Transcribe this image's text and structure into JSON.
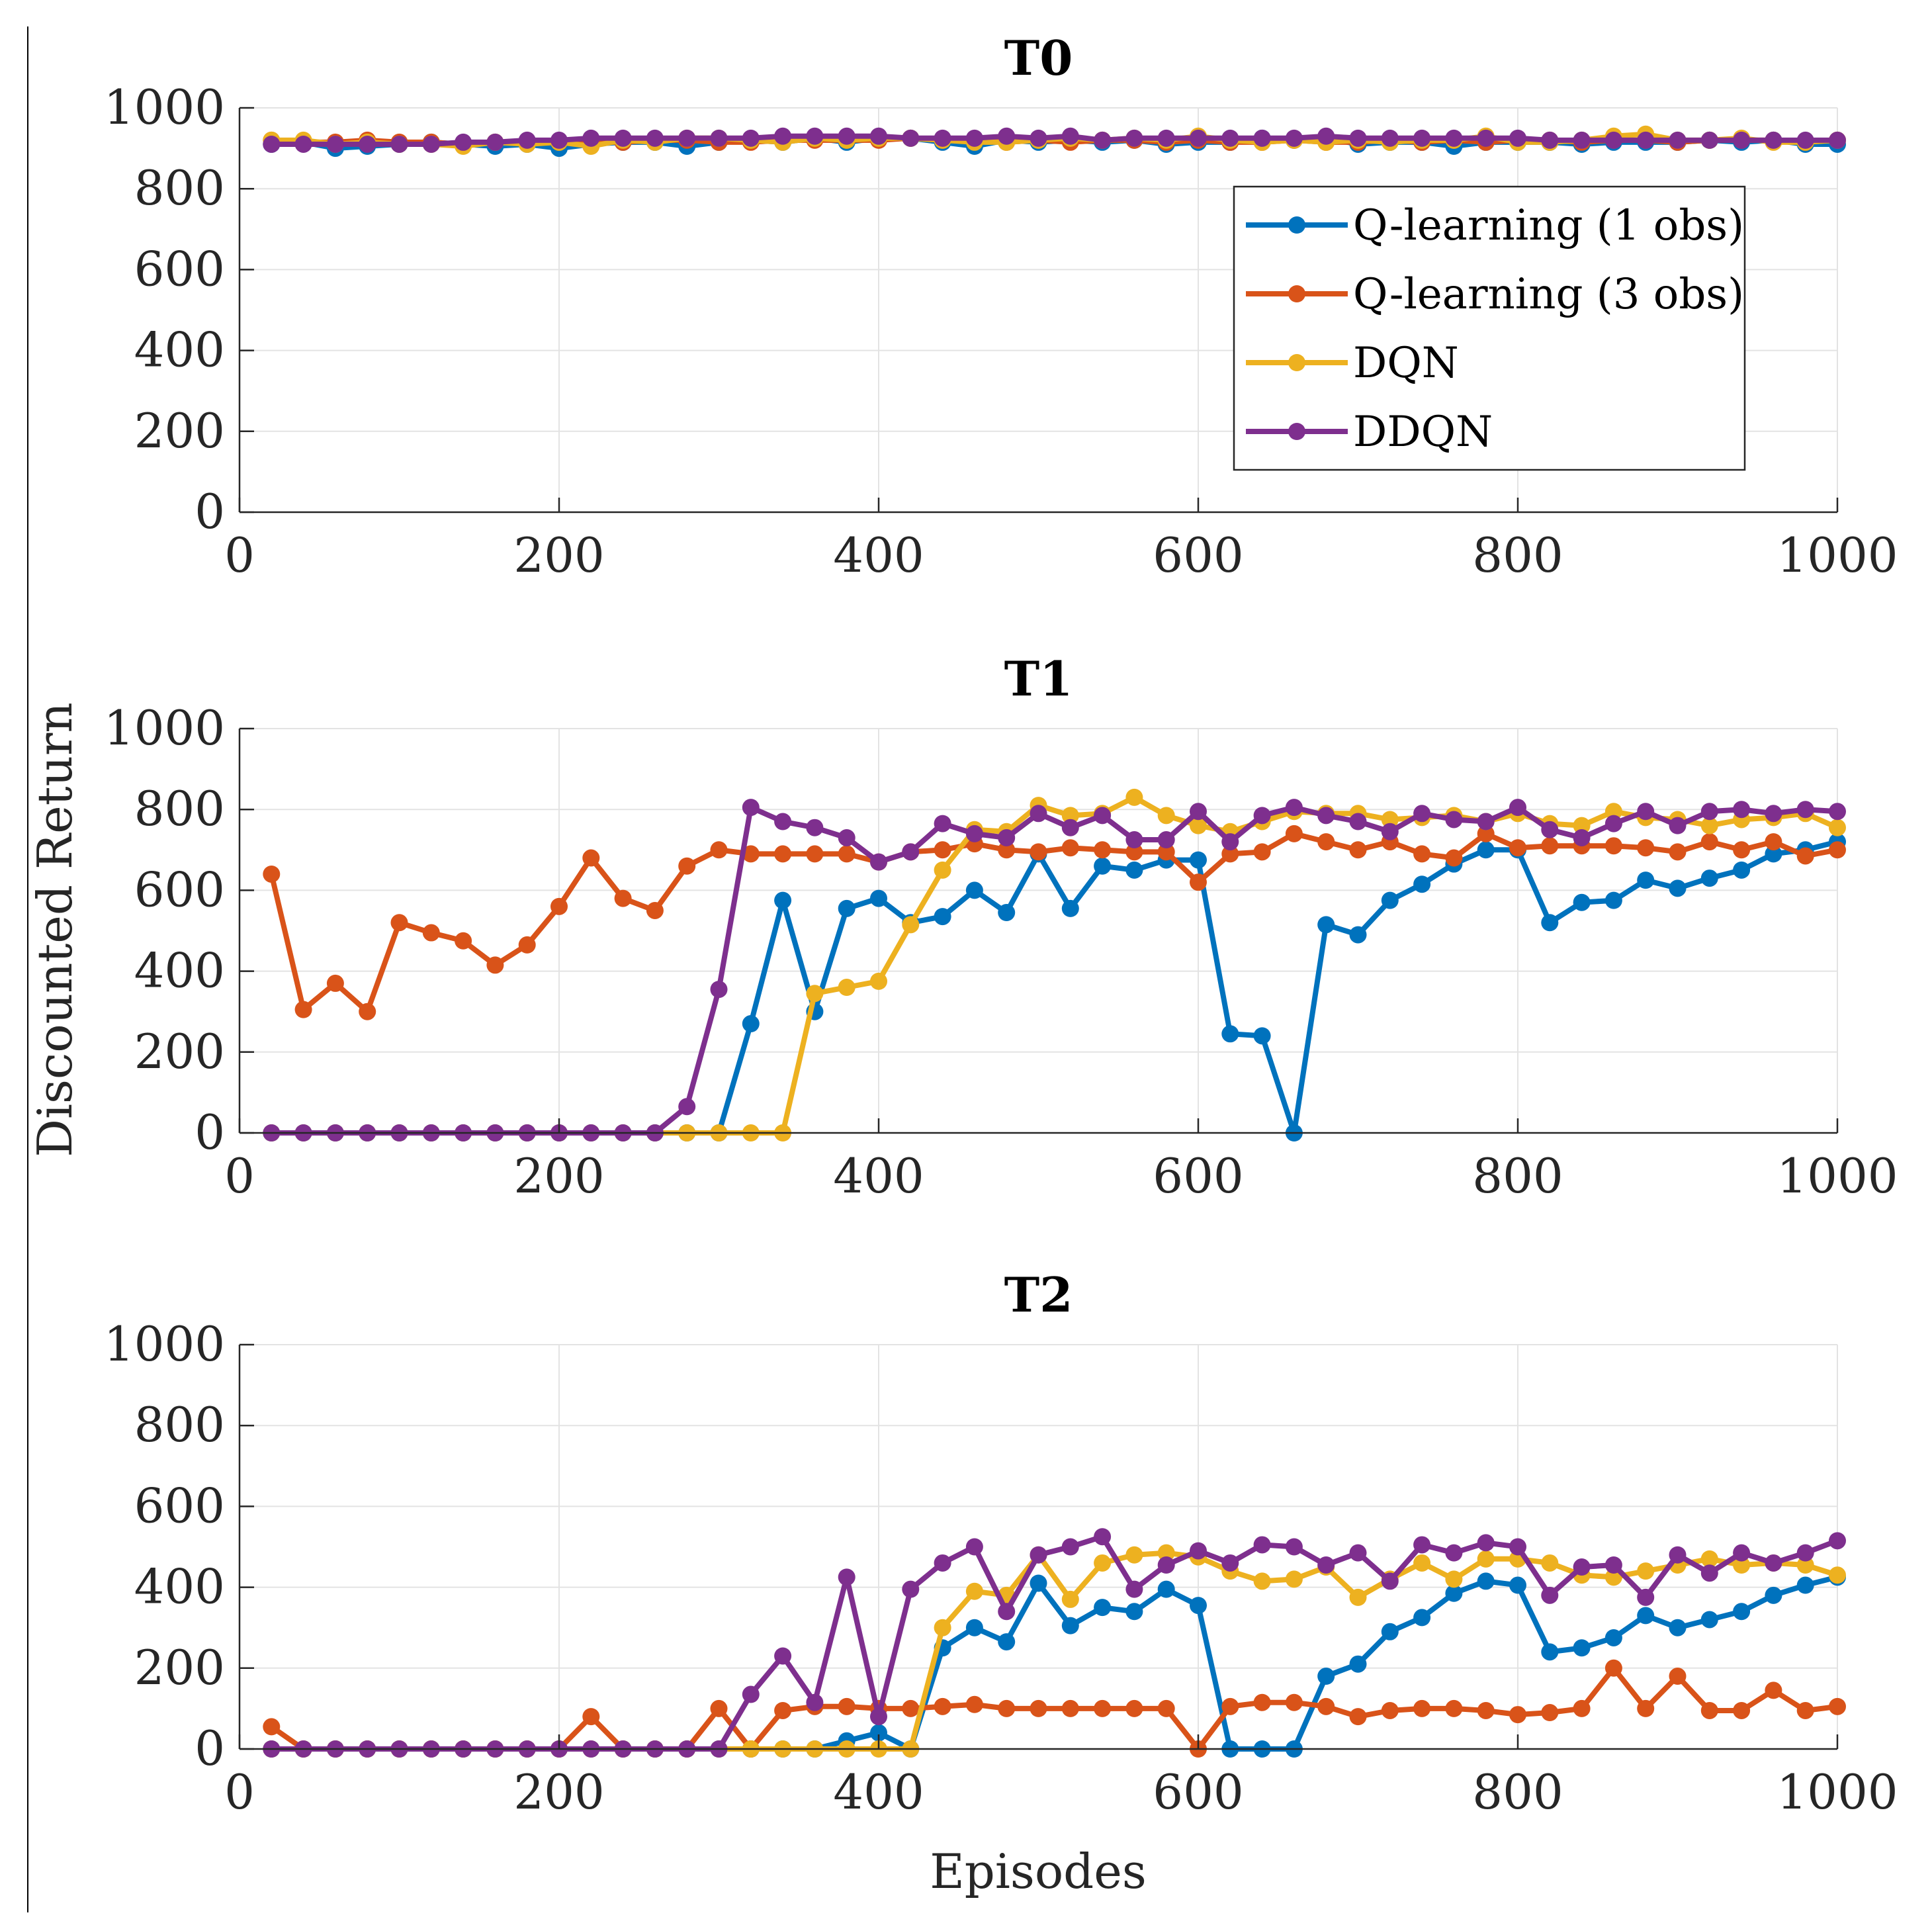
{
  "figure": {
    "ylabel": "Discounted Return",
    "xlabel": "Episodes"
  },
  "chart_data": [
    {
      "type": "line",
      "title": "T0",
      "xlabel": "",
      "ylabel": "",
      "xlim": [
        0,
        1000
      ],
      "ylim": [
        0,
        1000
      ],
      "xticks": [
        0,
        200,
        400,
        600,
        800,
        1000
      ],
      "yticks": [
        0,
        200,
        400,
        600,
        800,
        1000
      ],
      "grid": true,
      "legend": "top-right-inside",
      "x": [
        20,
        40,
        60,
        80,
        100,
        120,
        140,
        160,
        180,
        200,
        220,
        240,
        260,
        280,
        300,
        320,
        340,
        360,
        380,
        400,
        420,
        440,
        460,
        480,
        500,
        520,
        540,
        560,
        580,
        600,
        620,
        640,
        660,
        680,
        700,
        720,
        740,
        760,
        780,
        800,
        820,
        840,
        860,
        880,
        900,
        920,
        940,
        960,
        980,
        1000
      ],
      "series": [
        {
          "name": "Q-learning (1 obs)",
          "color": "#0072BD",
          "values": [
            910,
            915,
            900,
            905,
            910,
            915,
            910,
            905,
            910,
            900,
            910,
            915,
            915,
            905,
            915,
            920,
            915,
            925,
            915,
            925,
            925,
            915,
            905,
            920,
            915,
            920,
            915,
            920,
            910,
            915,
            915,
            925,
            920,
            925,
            910,
            915,
            915,
            905,
            915,
            915,
            915,
            910,
            915,
            915,
            915,
            920,
            915,
            920,
            910,
            910
          ]
        },
        {
          "name": "Q-learning (3 obs)",
          "color": "#D95319",
          "values": [
            920,
            915,
            915,
            920,
            915,
            915,
            910,
            915,
            915,
            915,
            915,
            915,
            920,
            920,
            915,
            915,
            920,
            920,
            920,
            920,
            925,
            920,
            920,
            915,
            920,
            915,
            920,
            920,
            915,
            920,
            915,
            915,
            920,
            915,
            915,
            920,
            915,
            920,
            915,
            920,
            920,
            915,
            920,
            920,
            915,
            920,
            920,
            920,
            915,
            920
          ]
        },
        {
          "name": "DQN",
          "color": "#EDB120",
          "values": [
            920,
            920,
            910,
            915,
            910,
            910,
            905,
            915,
            910,
            915,
            905,
            920,
            915,
            925,
            925,
            920,
            915,
            925,
            920,
            925,
            925,
            920,
            915,
            915,
            920,
            925,
            920,
            925,
            920,
            930,
            920,
            915,
            920,
            915,
            920,
            915,
            920,
            920,
            930,
            915,
            915,
            920,
            930,
            935,
            920,
            920,
            925,
            915,
            915,
            920
          ]
        },
        {
          "name": "DDQN",
          "color": "#7E2F8E",
          "values": [
            910,
            910,
            910,
            910,
            910,
            910,
            915,
            915,
            920,
            920,
            925,
            925,
            925,
            925,
            925,
            925,
            930,
            930,
            930,
            930,
            925,
            925,
            925,
            930,
            925,
            930,
            920,
            925,
            925,
            925,
            925,
            925,
            925,
            930,
            925,
            925,
            925,
            925,
            925,
            925,
            920,
            920,
            920,
            920,
            920,
            920,
            920,
            920,
            920,
            920
          ]
        }
      ]
    },
    {
      "type": "line",
      "title": "T1",
      "xlabel": "",
      "ylabel": "",
      "xlim": [
        0,
        1000
      ],
      "ylim": [
        0,
        1000
      ],
      "xticks": [
        0,
        200,
        400,
        600,
        800,
        1000
      ],
      "yticks": [
        0,
        200,
        400,
        600,
        800,
        1000
      ],
      "grid": true,
      "x": [
        20,
        40,
        60,
        80,
        100,
        120,
        140,
        160,
        180,
        200,
        220,
        240,
        260,
        280,
        300,
        320,
        340,
        360,
        380,
        400,
        420,
        440,
        460,
        480,
        500,
        520,
        540,
        560,
        580,
        600,
        620,
        640,
        660,
        680,
        700,
        720,
        740,
        760,
        780,
        800,
        820,
        840,
        860,
        880,
        900,
        920,
        940,
        960,
        980,
        1000
      ],
      "series": [
        {
          "name": "Q-learning (1 obs)",
          "color": "#0072BD",
          "values": [
            0,
            0,
            0,
            0,
            0,
            0,
            0,
            0,
            0,
            0,
            0,
            0,
            0,
            0,
            0,
            270,
            575,
            300,
            555,
            580,
            520,
            535,
            600,
            545,
            690,
            555,
            660,
            650,
            675,
            675,
            245,
            240,
            0,
            515,
            490,
            575,
            615,
            665,
            700,
            700,
            520,
            570,
            575,
            625,
            605,
            630,
            650,
            690,
            700,
            720
          ]
        },
        {
          "name": "Q-learning (3 obs)",
          "color": "#D95319",
          "values": [
            640,
            305,
            370,
            300,
            520,
            495,
            475,
            415,
            465,
            560,
            680,
            580,
            550,
            660,
            700,
            690,
            690,
            690,
            690,
            670,
            695,
            700,
            715,
            700,
            695,
            705,
            700,
            695,
            695,
            620,
            690,
            695,
            740,
            720,
            700,
            720,
            690,
            680,
            740,
            705,
            710,
            710,
            710,
            705,
            695,
            720,
            700,
            720,
            685,
            700
          ]
        },
        {
          "name": "DQN",
          "color": "#EDB120",
          "values": [
            0,
            0,
            0,
            0,
            0,
            0,
            0,
            0,
            0,
            0,
            0,
            0,
            0,
            0,
            0,
            0,
            0,
            345,
            360,
            375,
            515,
            650,
            750,
            745,
            810,
            785,
            790,
            830,
            785,
            760,
            745,
            770,
            795,
            790,
            790,
            775,
            780,
            785,
            770,
            790,
            765,
            760,
            795,
            780,
            775,
            760,
            775,
            780,
            790,
            755
          ]
        },
        {
          "name": "DDQN",
          "color": "#7E2F8E",
          "values": [
            0,
            0,
            0,
            0,
            0,
            0,
            0,
            0,
            0,
            0,
            0,
            0,
            0,
            65,
            355,
            805,
            770,
            755,
            730,
            670,
            695,
            765,
            740,
            730,
            790,
            755,
            785,
            725,
            725,
            795,
            720,
            785,
            805,
            785,
            770,
            745,
            790,
            775,
            770,
            805,
            750,
            730,
            765,
            795,
            760,
            795,
            800,
            790,
            800,
            795
          ]
        }
      ]
    },
    {
      "type": "line",
      "title": "T2",
      "xlabel": "Episodes",
      "ylabel": "",
      "xlim": [
        0,
        1000
      ],
      "ylim": [
        0,
        1000
      ],
      "xticks": [
        0,
        200,
        400,
        600,
        800,
        1000
      ],
      "yticks": [
        0,
        200,
        400,
        600,
        800,
        1000
      ],
      "grid": true,
      "x": [
        20,
        40,
        60,
        80,
        100,
        120,
        140,
        160,
        180,
        200,
        220,
        240,
        260,
        280,
        300,
        320,
        340,
        360,
        380,
        400,
        420,
        440,
        460,
        480,
        500,
        520,
        540,
        560,
        580,
        600,
        620,
        640,
        660,
        680,
        700,
        720,
        740,
        760,
        780,
        800,
        820,
        840,
        860,
        880,
        900,
        920,
        940,
        960,
        980,
        1000
      ],
      "series": [
        {
          "name": "Q-learning (1 obs)",
          "color": "#0072BD",
          "values": [
            0,
            0,
            0,
            0,
            0,
            0,
            0,
            0,
            0,
            0,
            0,
            0,
            0,
            0,
            0,
            0,
            0,
            0,
            20,
            40,
            0,
            250,
            300,
            265,
            410,
            305,
            350,
            340,
            395,
            355,
            0,
            0,
            0,
            180,
            210,
            290,
            325,
            385,
            415,
            405,
            240,
            250,
            275,
            330,
            300,
            320,
            340,
            380,
            405,
            425
          ]
        },
        {
          "name": "Q-learning (3 obs)",
          "color": "#D95319",
          "values": [
            55,
            0,
            0,
            0,
            0,
            0,
            0,
            0,
            0,
            0,
            80,
            0,
            0,
            0,
            100,
            0,
            95,
            105,
            105,
            100,
            100,
            105,
            110,
            100,
            100,
            100,
            100,
            100,
            100,
            0,
            105,
            115,
            115,
            105,
            80,
            95,
            100,
            100,
            95,
            85,
            90,
            100,
            200,
            100,
            180,
            95,
            95,
            145,
            95,
            105
          ]
        },
        {
          "name": "DQN",
          "color": "#EDB120",
          "values": [
            0,
            0,
            0,
            0,
            0,
            0,
            0,
            0,
            0,
            0,
            0,
            0,
            0,
            0,
            0,
            0,
            0,
            0,
            0,
            0,
            0,
            300,
            390,
            380,
            480,
            370,
            460,
            480,
            485,
            475,
            440,
            415,
            420,
            450,
            375,
            420,
            460,
            420,
            470,
            470,
            460,
            430,
            425,
            440,
            455,
            470,
            455,
            460,
            455,
            430
          ]
        },
        {
          "name": "DDQN",
          "color": "#7E2F8E",
          "values": [
            0,
            0,
            0,
            0,
            0,
            0,
            0,
            0,
            0,
            0,
            0,
            0,
            0,
            0,
            0,
            135,
            230,
            115,
            425,
            80,
            395,
            460,
            500,
            340,
            480,
            500,
            525,
            395,
            455,
            490,
            460,
            505,
            500,
            455,
            485,
            415,
            505,
            485,
            510,
            500,
            380,
            450,
            455,
            375,
            480,
            435,
            485,
            460,
            485,
            515
          ]
        }
      ]
    }
  ]
}
